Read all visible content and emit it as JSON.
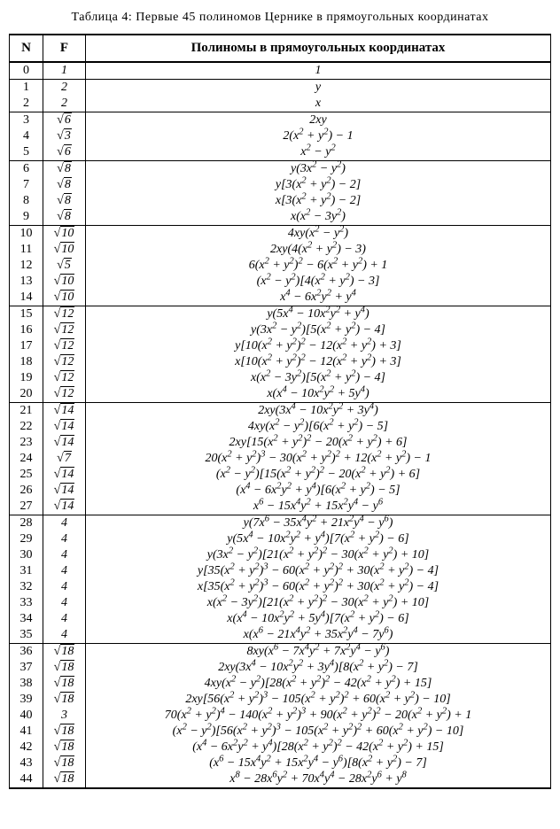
{
  "caption": "Таблица 4: Первые 45 полиномов Цернике в прямоугольных координатах",
  "headers": {
    "n": "N",
    "f": "F",
    "p": "Полиномы в прямоугольных координатах"
  },
  "groups": [
    [
      {
        "n": "0",
        "f_type": "plain",
        "f": "1",
        "poly": "1"
      }
    ],
    [
      {
        "n": "1",
        "f_type": "plain",
        "f": "2",
        "poly": "<i>y</i>"
      },
      {
        "n": "2",
        "f_type": "plain",
        "f": "2",
        "poly": "<i>x</i>"
      }
    ],
    [
      {
        "n": "3",
        "f_type": "sqrt",
        "f": "6",
        "poly": "2<i>xy</i>"
      },
      {
        "n": "4",
        "f_type": "sqrt",
        "f": "3",
        "poly": "2(<i>x</i><sup>2</sup> + <i>y</i><sup>2</sup>) − 1"
      },
      {
        "n": "5",
        "f_type": "sqrt",
        "f": "6",
        "poly": "<i>x</i><sup>2</sup> − <i>y</i><sup>2</sup>"
      }
    ],
    [
      {
        "n": "6",
        "f_type": "sqrt",
        "f": "8",
        "poly": "<i>y</i>(3<i>x</i><sup>2</sup> − <i>y</i><sup>2</sup>)"
      },
      {
        "n": "7",
        "f_type": "sqrt",
        "f": "8",
        "poly": "<i>y</i>[3(<i>x</i><sup>2</sup> + <i>y</i><sup>2</sup>) − 2]"
      },
      {
        "n": "8",
        "f_type": "sqrt",
        "f": "8",
        "poly": "<i>x</i>[3(<i>x</i><sup>2</sup> + <i>y</i><sup>2</sup>) − 2]"
      },
      {
        "n": "9",
        "f_type": "sqrt",
        "f": "8",
        "poly": "<i>x</i>(<i>x</i><sup>2</sup> − 3<i>y</i><sup>2</sup>)"
      }
    ],
    [
      {
        "n": "10",
        "f_type": "sqrt",
        "f": "10",
        "poly": "4<i>xy</i>(<i>x</i><sup>2</sup> − <i>y</i><sup>2</sup>)"
      },
      {
        "n": "11",
        "f_type": "sqrt",
        "f": "10",
        "poly": "2<i>xy</i>(4(<i>x</i><sup>2</sup> + <i>y</i><sup>2</sup>) − 3)"
      },
      {
        "n": "12",
        "f_type": "sqrt",
        "f": "5",
        "poly": "6(<i>x</i><sup>2</sup> + <i>y</i><sup>2</sup>)<sup>2</sup> − 6(<i>x</i><sup>2</sup> + <i>y</i><sup>2</sup>) + 1"
      },
      {
        "n": "13",
        "f_type": "sqrt",
        "f": "10",
        "poly": "(<i>x</i><sup>2</sup> − <i>y</i><sup>2</sup>)[4(<i>x</i><sup>2</sup> + <i>y</i><sup>2</sup>) − 3]"
      },
      {
        "n": "14",
        "f_type": "sqrt",
        "f": "10",
        "poly": "<i>x</i><sup>4</sup> − 6<i>x</i><sup>2</sup><i>y</i><sup>2</sup> + <i>y</i><sup>4</sup>"
      }
    ],
    [
      {
        "n": "15",
        "f_type": "sqrt",
        "f": "12",
        "poly": "<i>y</i>(5<i>x</i><sup>4</sup> − 10<i>x</i><sup>2</sup><i>y</i><sup>2</sup> + <i>y</i><sup>4</sup>)"
      },
      {
        "n": "16",
        "f_type": "sqrt",
        "f": "12",
        "poly": "<i>y</i>(3<i>x</i><sup>2</sup> − <i>y</i><sup>2</sup>)[5(<i>x</i><sup>2</sup> + <i>y</i><sup>2</sup>) − 4]"
      },
      {
        "n": "17",
        "f_type": "sqrt",
        "f": "12",
        "poly": "<i>y</i>[10(<i>x</i><sup>2</sup> + <i>y</i><sup>2</sup>)<sup>2</sup> − 12(<i>x</i><sup>2</sup> + <i>y</i><sup>2</sup>) + 3]"
      },
      {
        "n": "18",
        "f_type": "sqrt",
        "f": "12",
        "poly": "<i>x</i>[10(<i>x</i><sup>2</sup> + <i>y</i><sup>2</sup>)<sup>2</sup> − 12(<i>x</i><sup>2</sup> + <i>y</i><sup>2</sup>) + 3]"
      },
      {
        "n": "19",
        "f_type": "sqrt",
        "f": "12",
        "poly": "<i>x</i>(<i>x</i><sup>2</sup> − 3<i>y</i><sup>2</sup>)[5(<i>x</i><sup>2</sup> + <i>y</i><sup>2</sup>) − 4]"
      },
      {
        "n": "20",
        "f_type": "sqrt",
        "f": "12",
        "poly": "<i>x</i>(<i>x</i><sup>4</sup> − 10<i>x</i><sup>2</sup><i>y</i><sup>2</sup> + 5<i>y</i><sup>4</sup>)"
      }
    ],
    [
      {
        "n": "21",
        "f_type": "sqrt",
        "f": "14",
        "poly": "2<i>xy</i>(3<i>x</i><sup>4</sup> − 10<i>x</i><sup>2</sup><i>y</i><sup>2</sup> + 3<i>y</i><sup>4</sup>)"
      },
      {
        "n": "22",
        "f_type": "sqrt",
        "f": "14",
        "poly": "4<i>xy</i>(<i>x</i><sup>2</sup> − <i>y</i><sup>2</sup>)[6(<i>x</i><sup>2</sup> + <i>y</i><sup>2</sup>) − 5]"
      },
      {
        "n": "23",
        "f_type": "sqrt",
        "f": "14",
        "poly": "2<i>xy</i>[15(<i>x</i><sup>2</sup> + <i>y</i><sup>2</sup>)<sup>2</sup> − 20(<i>x</i><sup>2</sup> + <i>y</i><sup>2</sup>) + 6]"
      },
      {
        "n": "24",
        "f_type": "sqrt",
        "f": "7",
        "poly": "20(<i>x</i><sup>2</sup> + <i>y</i><sup>2</sup>)<sup>3</sup> − 30(<i>x</i><sup>2</sup> + <i>y</i><sup>2</sup>)<sup>2</sup> + 12(<i>x</i><sup>2</sup> + <i>y</i><sup>2</sup>) − 1"
      },
      {
        "n": "25",
        "f_type": "sqrt",
        "f": "14",
        "poly": "(<i>x</i><sup>2</sup> − <i>y</i><sup>2</sup>)[15(<i>x</i><sup>2</sup> + <i>y</i><sup>2</sup>)<sup>2</sup> − 20(<i>x</i><sup>2</sup> + <i>y</i><sup>2</sup>) + 6]"
      },
      {
        "n": "26",
        "f_type": "sqrt",
        "f": "14",
        "poly": "(<i>x</i><sup>4</sup> − 6<i>x</i><sup>2</sup><i>y</i><sup>2</sup> + <i>y</i><sup>4</sup>)[6(<i>x</i><sup>2</sup> + <i>y</i><sup>2</sup>) − 5]"
      },
      {
        "n": "27",
        "f_type": "sqrt",
        "f": "14",
        "poly": "<i>x</i><sup>6</sup> − 15<i>x</i><sup>4</sup><i>y</i><sup>2</sup> + 15<i>x</i><sup>2</sup><i>y</i><sup>4</sup> − <i>y</i><sup>6</sup>"
      }
    ],
    [
      {
        "n": "28",
        "f_type": "plain",
        "f": "4",
        "poly": "<i>y</i>(7<i>x</i><sup>6</sup> − 35<i>x</i><sup>4</sup><i>y</i><sup>2</sup> + 21<i>x</i><sup>2</sup><i>y</i><sup>4</sup> − <i>y</i><sup>6</sup>)"
      },
      {
        "n": "29",
        "f_type": "plain",
        "f": "4",
        "poly": "<i>y</i>(5<i>x</i><sup>4</sup> − 10<i>x</i><sup>2</sup><i>y</i><sup>2</sup> + <i>y</i><sup>4</sup>)[7(<i>x</i><sup>2</sup> + <i>y</i><sup>2</sup>) − 6]"
      },
      {
        "n": "30",
        "f_type": "plain",
        "f": "4",
        "poly": "<i>y</i>(3<i>x</i><sup>2</sup> − <i>y</i><sup>2</sup>)[21(<i>x</i><sup>2</sup> + <i>y</i><sup>2</sup>)<sup>2</sup> − 30(<i>x</i><sup>2</sup> + <i>y</i><sup>2</sup>) + 10]"
      },
      {
        "n": "31",
        "f_type": "plain",
        "f": "4",
        "poly": "<i>y</i>[35(<i>x</i><sup>2</sup> + <i>y</i><sup>2</sup>)<sup>3</sup> − 60(<i>x</i><sup>2</sup> + <i>y</i><sup>2</sup>)<sup>2</sup> + 30(<i>x</i><sup>2</sup> + <i>y</i><sup>2</sup>) − 4]"
      },
      {
        "n": "32",
        "f_type": "plain",
        "f": "4",
        "poly": "<i>x</i>[35(<i>x</i><sup>2</sup> + <i>y</i><sup>2</sup>)<sup>3</sup> − 60(<i>x</i><sup>2</sup> + <i>y</i><sup>2</sup>)<sup>2</sup> + 30(<i>x</i><sup>2</sup> + <i>y</i><sup>2</sup>) − 4]"
      },
      {
        "n": "33",
        "f_type": "plain",
        "f": "4",
        "poly": "<i>x</i>(<i>x</i><sup>2</sup> − 3<i>y</i><sup>2</sup>)[21(<i>x</i><sup>2</sup> + <i>y</i><sup>2</sup>)<sup>2</sup> − 30(<i>x</i><sup>2</sup> + <i>y</i><sup>2</sup>) + 10]"
      },
      {
        "n": "34",
        "f_type": "plain",
        "f": "4",
        "poly": "<i>x</i>(<i>x</i><sup>4</sup> − 10<i>x</i><sup>2</sup><i>y</i><sup>2</sup> + 5<i>y</i><sup>4</sup>)[7(<i>x</i><sup>2</sup> + <i>y</i><sup>2</sup>) − 6]"
      },
      {
        "n": "35",
        "f_type": "plain",
        "f": "4",
        "poly": "<i>x</i>(<i>x</i><sup>6</sup> − 21<i>x</i><sup>4</sup><i>y</i><sup>2</sup> + 35<i>x</i><sup>2</sup><i>y</i><sup>4</sup> − 7<i>y</i><sup>6</sup>)"
      }
    ],
    [
      {
        "n": "36",
        "f_type": "sqrt",
        "f": "18",
        "poly": "8<i>xy</i>(<i>x</i><sup>6</sup> − 7<i>x</i><sup>4</sup><i>y</i><sup>2</sup> + 7<i>x</i><sup>2</sup><i>y</i><sup>4</sup> − <i>y</i><sup>6</sup>)"
      },
      {
        "n": "37",
        "f_type": "sqrt",
        "f": "18",
        "poly": "2<i>xy</i>(3<i>x</i><sup>4</sup> − 10<i>x</i><sup>2</sup><i>y</i><sup>2</sup> + 3<i>y</i><sup>4</sup>)[8(<i>x</i><sup>2</sup> + <i>y</i><sup>2</sup>) − 7]"
      },
      {
        "n": "38",
        "f_type": "sqrt",
        "f": "18",
        "poly": "4<i>xy</i>(<i>x</i><sup>2</sup> − <i>y</i><sup>2</sup>)[28(<i>x</i><sup>2</sup> + <i>y</i><sup>2</sup>)<sup>2</sup> − 42(<i>x</i><sup>2</sup> + <i>y</i><sup>2</sup>) + 15]"
      },
      {
        "n": "39",
        "f_type": "sqrt",
        "f": "18",
        "poly": "2<i>xy</i>[56(<i>x</i><sup>2</sup> + <i>y</i><sup>2</sup>)<sup>3</sup> − 105(<i>x</i><sup>2</sup> + <i>y</i><sup>2</sup>)<sup>2</sup> + 60(<i>x</i><sup>2</sup> + <i>y</i><sup>2</sup>) − 10]"
      },
      {
        "n": "40",
        "f_type": "plain",
        "f": "3",
        "poly": "70(<i>x</i><sup>2</sup> + <i>y</i><sup>2</sup>)<sup>4</sup> − 140(<i>x</i><sup>2</sup> + <i>y</i><sup>2</sup>)<sup>3</sup> + 90(<i>x</i><sup>2</sup> + <i>y</i><sup>2</sup>)<sup>2</sup> − 20(<i>x</i><sup>2</sup> + <i>y</i><sup>2</sup>) + 1"
      },
      {
        "n": "41",
        "f_type": "sqrt",
        "f": "18",
        "poly": "(<i>x</i><sup>2</sup> − <i>y</i><sup>2</sup>)[56(<i>x</i><sup>2</sup> + <i>y</i><sup>2</sup>)<sup>3</sup> − 105(<i>x</i><sup>2</sup> + <i>y</i><sup>2</sup>)<sup>2</sup> + 60(<i>x</i><sup>2</sup> + <i>y</i><sup>2</sup>) − 10]"
      },
      {
        "n": "42",
        "f_type": "sqrt",
        "f": "18",
        "poly": "(<i>x</i><sup>4</sup> − 6<i>x</i><sup>2</sup><i>y</i><sup>2</sup> + <i>y</i><sup>4</sup>)[28(<i>x</i><sup>2</sup> + <i>y</i><sup>2</sup>)<sup>2</sup> − 42(<i>x</i><sup>2</sup> + <i>y</i><sup>2</sup>) + 15]"
      },
      {
        "n": "43",
        "f_type": "sqrt",
        "f": "18",
        "poly": "(<i>x</i><sup>6</sup> − 15<i>x</i><sup>4</sup><i>y</i><sup>2</sup> + 15<i>x</i><sup>2</sup><i>y</i><sup>4</sup> − <i>y</i><sup>6</sup>)[8(<i>x</i><sup>2</sup> + <i>y</i><sup>2</sup>) − 7]"
      },
      {
        "n": "44",
        "f_type": "sqrt",
        "f": "18",
        "poly": "<i>x</i><sup>8</sup> − 28<i>x</i><sup>6</sup><i>y</i><sup>2</sup> + 70<i>x</i><sup>4</sup><i>y</i><sup>4</sup> − 28<i>x</i><sup>2</sup><i>y</i><sup>6</sup> + <i>y</i><sup>8</sup>"
      }
    ]
  ]
}
